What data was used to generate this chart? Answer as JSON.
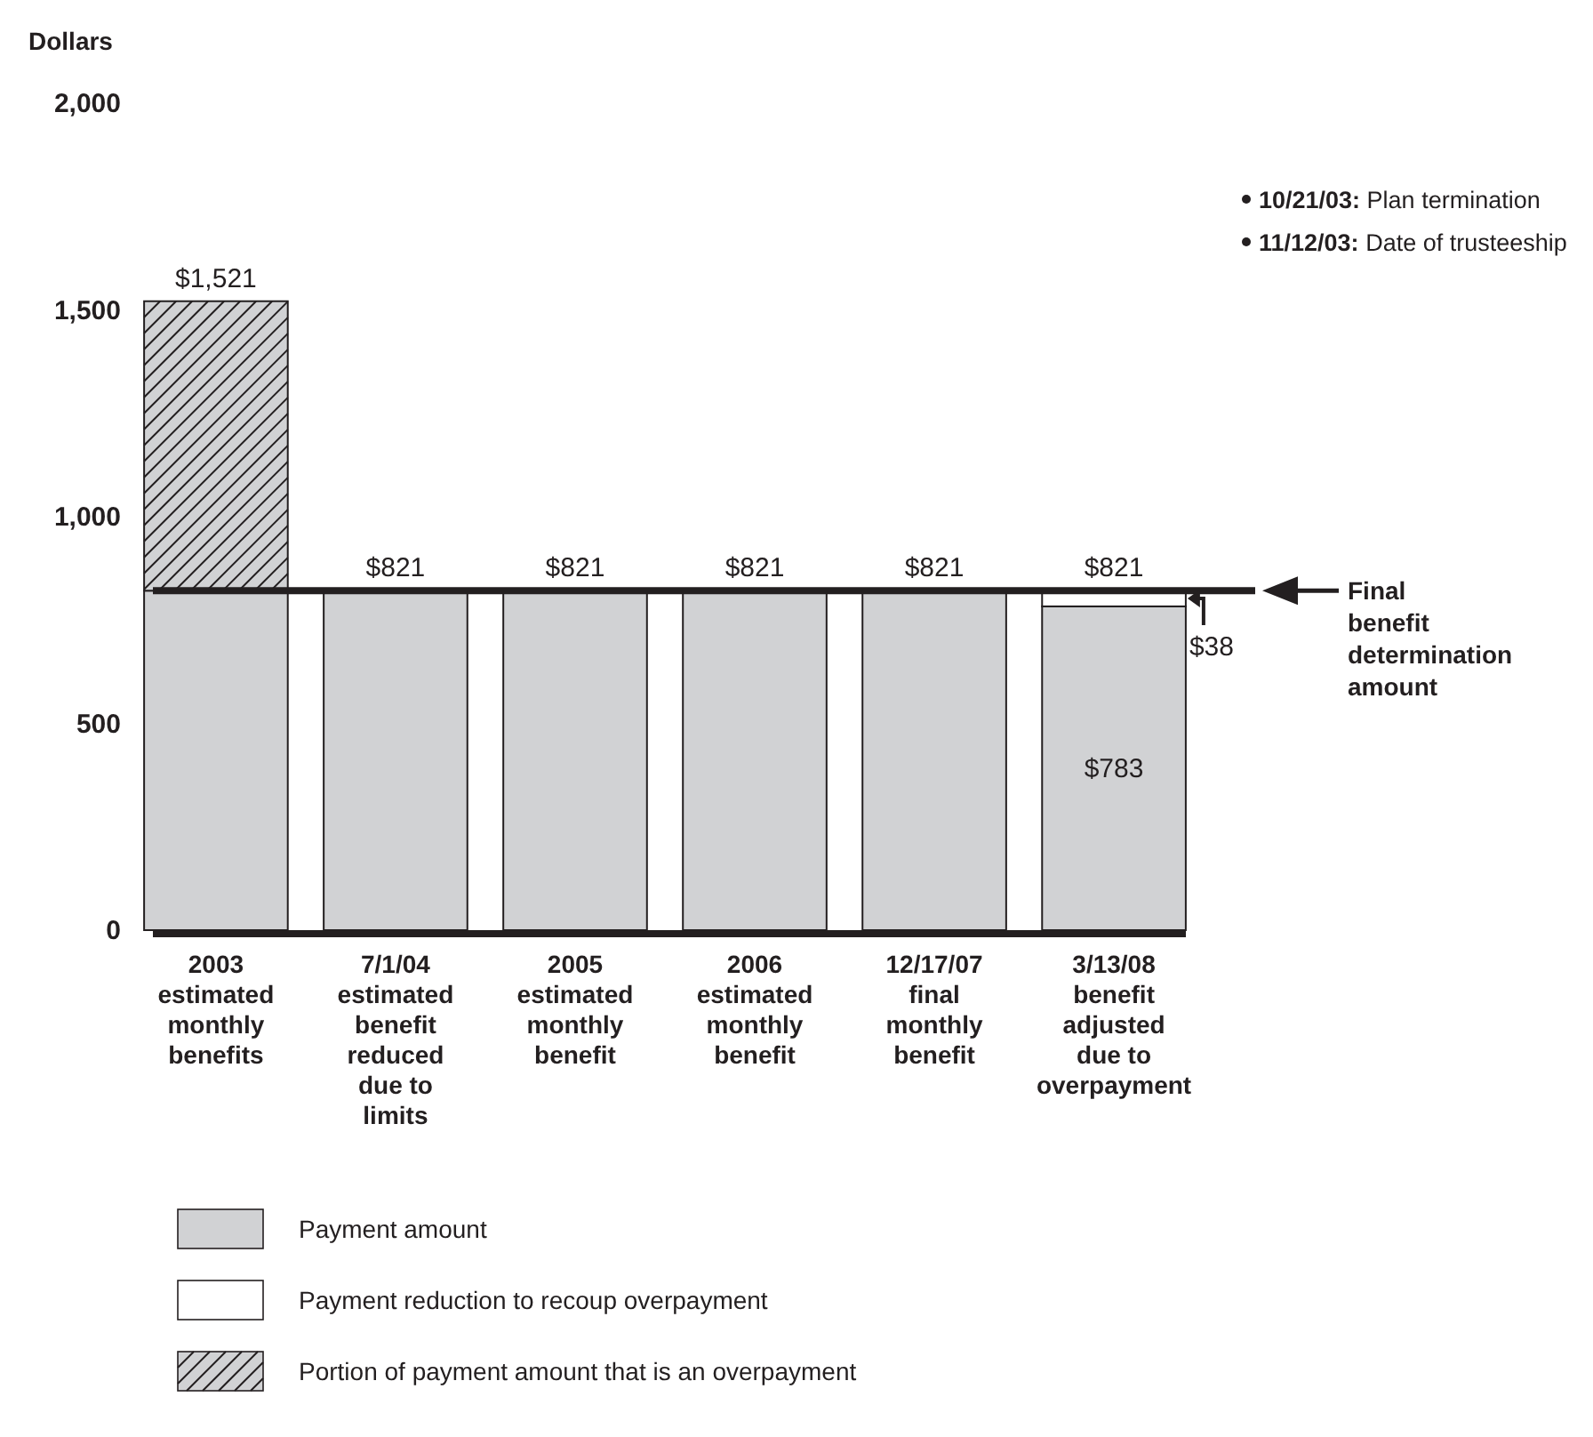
{
  "chart_data": {
    "type": "bar",
    "ylabel": "Dollars",
    "stacked": true,
    "categories": [
      "2003 estimated monthly benefits",
      "7/1/04 estimated benefit reduced due to limits",
      "2005 estimated monthly benefit",
      "2006 estimated monthly benefit",
      "12/17/07 final monthly benefit",
      "3/13/08 benefit adjusted due to overpayment"
    ],
    "series": [
      {
        "name": "Payment amount",
        "color": "#d1d2d4",
        "values": [
          821,
          821,
          821,
          821,
          821,
          783
        ],
        "value_labels": [
          null,
          null,
          null,
          null,
          null,
          "$783"
        ]
      },
      {
        "name": "Payment reduction to recoup overpayment",
        "color": "#ffffff",
        "values": [
          null,
          null,
          null,
          null,
          null,
          38
        ],
        "value_labels": [
          null,
          null,
          null,
          null,
          null,
          "$38"
        ]
      },
      {
        "name": "Portion of payment amount that is an overpayment",
        "color": "#d1d2d4",
        "values": [
          700,
          null,
          null,
          null,
          null,
          null
        ]
      }
    ],
    "totals": [
      "$1,521",
      "$821",
      "$821",
      "$821",
      "$821",
      "$821"
    ],
    "ylim": [
      0,
      2000
    ],
    "yticks": [
      0,
      500,
      {
        "value": 1000,
        "label": "1,000"
      },
      {
        "value": 1500,
        "label": "1,500"
      },
      {
        "value": 2000,
        "label": "2,000"
      }
    ],
    "ref_lines": [
      {
        "axis": "y",
        "value": 821,
        "label": "Final benefit determination amount",
        "color": "#231f20"
      }
    ],
    "annotations": [
      "10/21/03: Plan termination",
      "11/12/03: Date of trusteeship"
    ],
    "grid": false,
    "legend": "bottom"
  }
}
